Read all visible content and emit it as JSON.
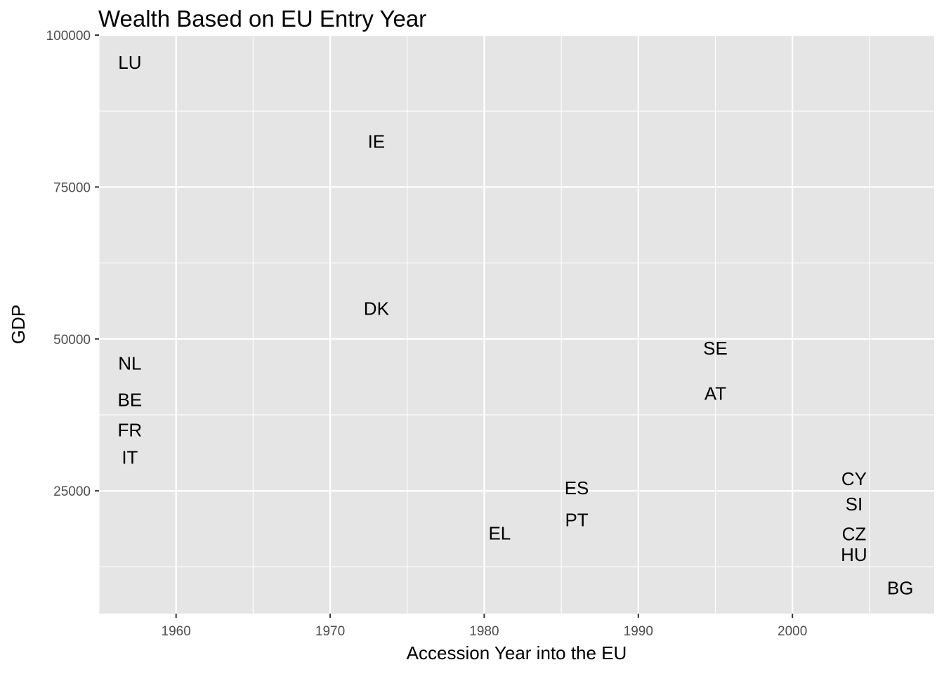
{
  "chart_data": {
    "type": "scatter",
    "title": "Wealth Based on EU Entry Year",
    "xlabel": "Accession Year into the EU",
    "ylabel": "GDP",
    "xlim": [
      1955,
      2009.2
    ],
    "ylim": [
      4800,
      100000
    ],
    "xticks": [
      1960,
      1970,
      1980,
      1990,
      2000
    ],
    "xticks_minor": [
      1955,
      1965,
      1975,
      1985,
      1995,
      2005
    ],
    "yticks": [
      25000,
      50000,
      75000,
      100000
    ],
    "yticks_minor": [
      12500,
      37500,
      62500,
      87500
    ],
    "grid": true,
    "marker": "text-label",
    "points": [
      {
        "label": "LU",
        "x": 1957,
        "y": 95500
      },
      {
        "label": "IE",
        "x": 1973,
        "y": 82500
      },
      {
        "label": "DK",
        "x": 1973,
        "y": 55000
      },
      {
        "label": "NL",
        "x": 1957,
        "y": 46000
      },
      {
        "label": "BE",
        "x": 1957,
        "y": 40000
      },
      {
        "label": "FR",
        "x": 1957,
        "y": 35000
      },
      {
        "label": "IT",
        "x": 1957,
        "y": 30500
      },
      {
        "label": "SE",
        "x": 1995,
        "y": 48500
      },
      {
        "label": "AT",
        "x": 1995,
        "y": 41000
      },
      {
        "label": "ES",
        "x": 1986,
        "y": 25500
      },
      {
        "label": "PT",
        "x": 1986,
        "y": 20200
      },
      {
        "label": "EL",
        "x": 1981,
        "y": 18000
      },
      {
        "label": "CY",
        "x": 2004,
        "y": 27000
      },
      {
        "label": "SI",
        "x": 2004,
        "y": 22800
      },
      {
        "label": "CZ",
        "x": 2004,
        "y": 17900
      },
      {
        "label": "HU",
        "x": 2004,
        "y": 14500
      },
      {
        "label": "BG",
        "x": 2007,
        "y": 9000
      }
    ]
  },
  "colors": {
    "panel_background": "#e5e5e5",
    "grid_major": "#ffffff",
    "tick_text": "#4d4d4d",
    "text": "#000000"
  }
}
